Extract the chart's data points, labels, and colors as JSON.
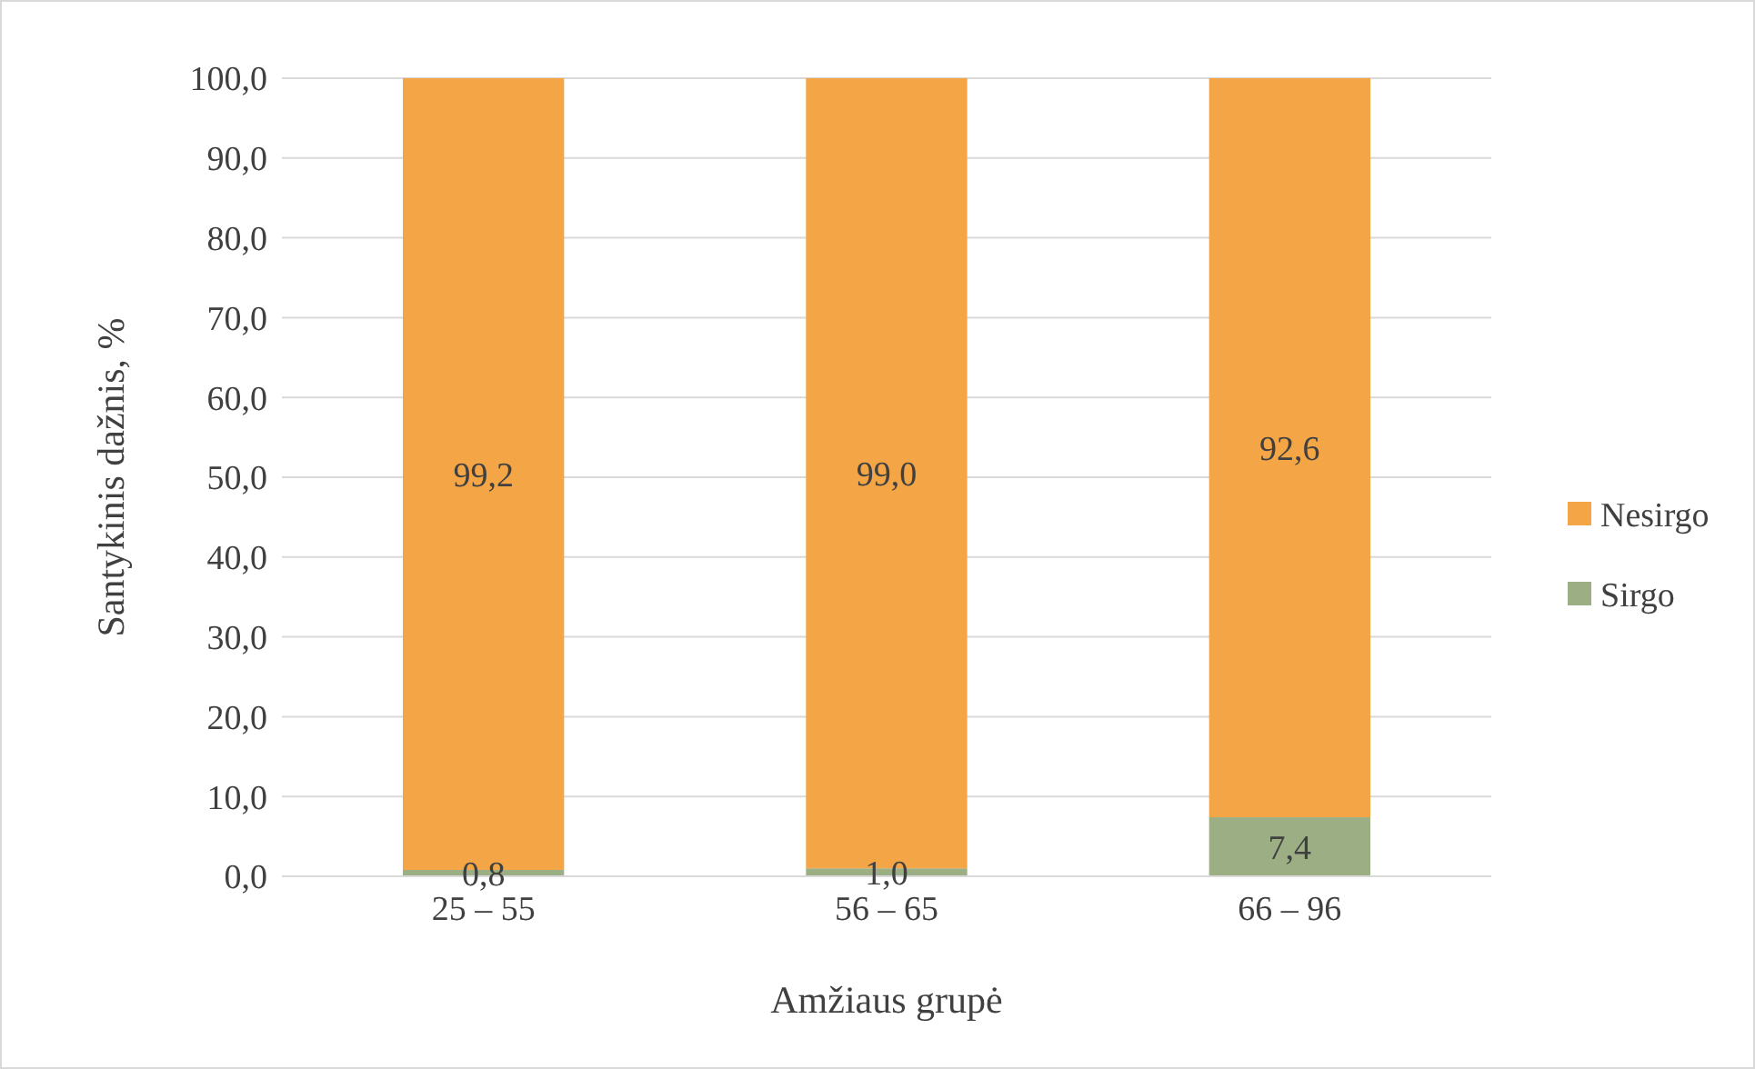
{
  "chart_data": {
    "type": "bar",
    "stacked": true,
    "xlabel": "Amžiaus grupė",
    "ylabel": "Santykinis dažnis, %",
    "categories": [
      "25 – 55",
      "56 – 65",
      "66 – 96"
    ],
    "series": [
      {
        "name": "Sirgo",
        "color": "#9caf84",
        "values": [
          0.8,
          1.0,
          7.4
        ],
        "value_labels": [
          "0,8",
          "1,0",
          "7,4"
        ]
      },
      {
        "name": "Nesirgo",
        "color": "#f4a646",
        "values": [
          99.2,
          99.0,
          92.6
        ],
        "value_labels": [
          "99,2",
          "99,0",
          "92,6"
        ]
      }
    ],
    "ylim": [
      0,
      100
    ],
    "yticks": [
      {
        "value": 0,
        "label": "0,0"
      },
      {
        "value": 10,
        "label": "10,0"
      },
      {
        "value": 20,
        "label": "20,0"
      },
      {
        "value": 30,
        "label": "30,0"
      },
      {
        "value": 40,
        "label": "40,0"
      },
      {
        "value": 50,
        "label": "50,0"
      },
      {
        "value": 60,
        "label": "60,0"
      },
      {
        "value": 70,
        "label": "70,0"
      },
      {
        "value": 80,
        "label": "80,0"
      },
      {
        "value": 90,
        "label": "90,0"
      },
      {
        "value": 100,
        "label": "100,0"
      }
    ],
    "grid": "y",
    "legend": "right"
  }
}
